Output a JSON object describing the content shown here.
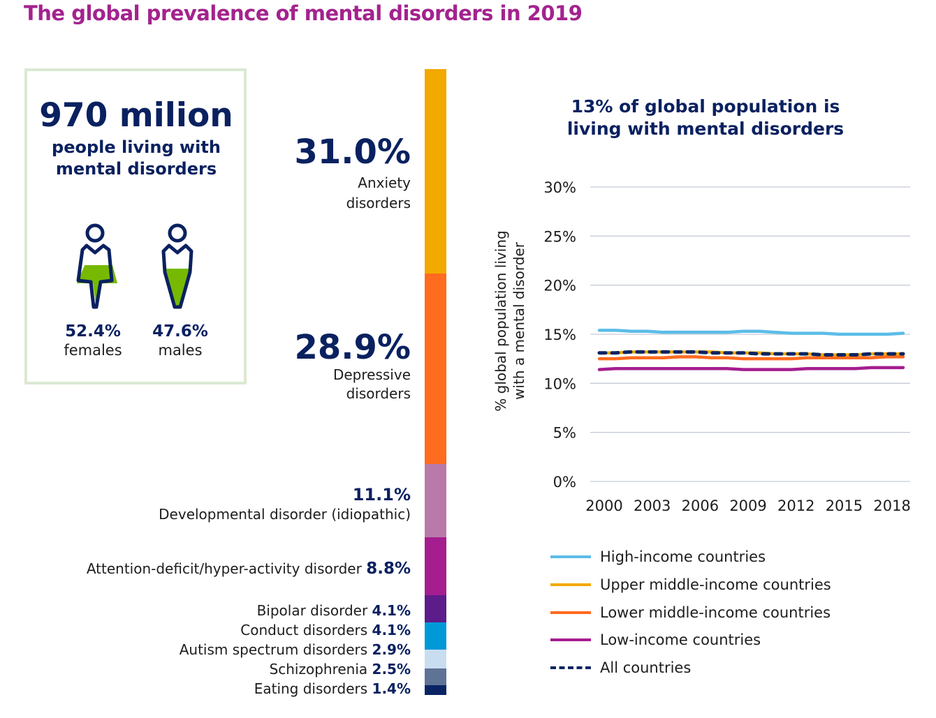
{
  "title": "The global prevalence of mental disorders in 2019",
  "summary": {
    "count": "970 milion",
    "subtitle_line1": "people living with",
    "subtitle_line2": "mental disorders",
    "females_pct": "52.4%",
    "females_label": "females",
    "males_pct": "47.6%",
    "males_label": "males",
    "female_fill": 0.524,
    "male_fill": 0.476
  },
  "colors": {
    "title": "#a3238e",
    "navy": "#0a2160",
    "green": "#76b900"
  },
  "disorders": [
    {
      "name": "Anxiety disorders",
      "line1": "Anxiety",
      "line2": "disorders",
      "pct": "31.0%",
      "value": 31.0,
      "color": "#f2a900"
    },
    {
      "name": "Depressive disorders",
      "line1": "Depressive",
      "line2": "disorders",
      "pct": "28.9%",
      "value": 28.9,
      "color": "#ff6b1f"
    },
    {
      "name": "Developmental disorder (idiopathic)",
      "pct": "11.1%",
      "value": 11.1,
      "color": "#b97aa9"
    },
    {
      "name": "Attention-deficit/hyper-activity disorder",
      "pct": "8.8%",
      "value": 8.8,
      "color": "#a51d8f"
    },
    {
      "name": "Bipolar disorder",
      "pct": "4.1%",
      "value": 4.1,
      "color": "#5c1c8a"
    },
    {
      "name": "Conduct disorders",
      "pct": "4.1%",
      "value": 4.1,
      "color": "#0099d8"
    },
    {
      "name": "Autism spectrum disorders",
      "pct": "2.9%",
      "value": 2.9,
      "color": "#c9ddf0"
    },
    {
      "name": "Schizophrenia",
      "pct": "2.5%",
      "value": 2.5,
      "color": "#5e7396"
    },
    {
      "name": "Eating disorders",
      "pct": "1.4%",
      "value": 1.4,
      "color": "#0a2463"
    }
  ],
  "chart_data": {
    "type": "line",
    "title_line1": "13% of global population is",
    "title_line2": "living with mental disorders",
    "ylabel_line1": "% global population living",
    "ylabel_line2": "with a mental disorder",
    "ylim": [
      0,
      30
    ],
    "yticks": [
      "0%",
      "5%",
      "10%",
      "15%",
      "20%",
      "25%",
      "30%"
    ],
    "xticks": [
      "2000",
      "2003",
      "2006",
      "2009",
      "2012",
      "2015",
      "2018"
    ],
    "x": [
      2000,
      2001,
      2002,
      2003,
      2004,
      2005,
      2006,
      2007,
      2008,
      2009,
      2010,
      2011,
      2012,
      2013,
      2014,
      2015,
      2016,
      2017,
      2018,
      2019
    ],
    "series": [
      {
        "name": "High-income countries",
        "color": "#5bbde8",
        "dash": false,
        "values": [
          15.4,
          15.4,
          15.3,
          15.3,
          15.2,
          15.2,
          15.2,
          15.2,
          15.2,
          15.3,
          15.3,
          15.2,
          15.1,
          15.1,
          15.1,
          15.0,
          15.0,
          15.0,
          15.0,
          15.1
        ]
      },
      {
        "name": "Upper middle-income countries",
        "color": "#f2a900",
        "dash": false,
        "values": [
          13.1,
          13.1,
          13.2,
          13.2,
          13.2,
          13.2,
          13.2,
          13.2,
          13.1,
          13.1,
          13.1,
          13.0,
          13.0,
          13.0,
          12.9,
          12.9,
          12.9,
          13.0,
          13.0,
          13.0
        ]
      },
      {
        "name": "Lower middle-income countries",
        "color": "#ff6b1f",
        "dash": false,
        "values": [
          12.5,
          12.5,
          12.6,
          12.6,
          12.6,
          12.7,
          12.7,
          12.6,
          12.6,
          12.5,
          12.5,
          12.5,
          12.5,
          12.6,
          12.6,
          12.6,
          12.6,
          12.6,
          12.7,
          12.7
        ]
      },
      {
        "name": "Low-income countries",
        "color": "#a51d8f",
        "dash": false,
        "values": [
          11.4,
          11.5,
          11.5,
          11.5,
          11.5,
          11.5,
          11.5,
          11.5,
          11.5,
          11.4,
          11.4,
          11.4,
          11.4,
          11.5,
          11.5,
          11.5,
          11.5,
          11.6,
          11.6,
          11.6
        ]
      },
      {
        "name": "All countries",
        "color": "#0a2463",
        "dash": true,
        "values": [
          13.1,
          13.1,
          13.2,
          13.2,
          13.2,
          13.2,
          13.2,
          13.1,
          13.1,
          13.1,
          13.0,
          13.0,
          13.0,
          13.0,
          12.9,
          12.9,
          12.9,
          13.0,
          13.0,
          13.0
        ]
      }
    ],
    "legend_position": "bottom"
  }
}
